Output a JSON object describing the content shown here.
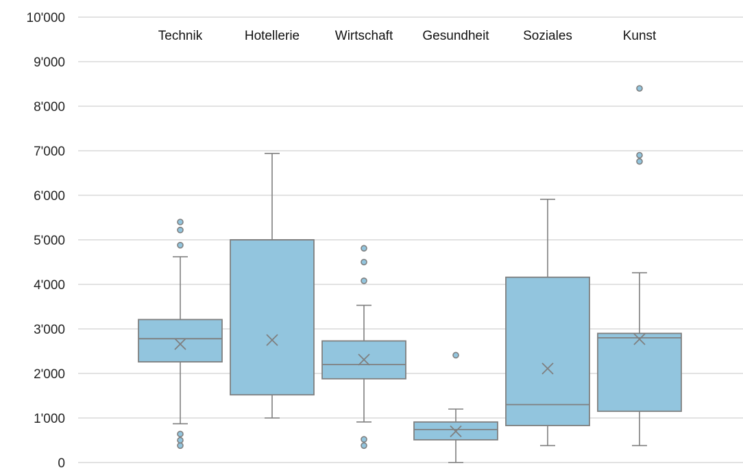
{
  "chart_data": {
    "type": "box",
    "y_ticks": [
      "0",
      "1'000",
      "2'000",
      "3'000",
      "4'000",
      "5'000",
      "6'000",
      "7'000",
      "8'000",
      "9'000",
      "10'000"
    ],
    "ylim": [
      0,
      10000
    ],
    "grid": true,
    "legend": "none",
    "colors": {
      "box_fill": "#92c5de",
      "box_stroke": "#7f7f7f",
      "grid": "#d9d9d9"
    },
    "categories": [
      "Technik",
      "Hotellerie",
      "Wirtschaft",
      "Gesundheit",
      "Soziales",
      "Kunst"
    ],
    "boxes": [
      {
        "category": "Technik",
        "whisker_low": 870,
        "q1": 2260,
        "median": 2780,
        "q3": 3210,
        "whisker_high": 4620,
        "mean": 2660,
        "outliers": [
          380,
          500,
          640,
          4880,
          5220,
          5400
        ]
      },
      {
        "category": "Hotellerie",
        "whisker_low": 1000,
        "q1": 1520,
        "median": 5000,
        "q3": 5000,
        "whisker_high": 6940,
        "mean": 2750,
        "outliers": []
      },
      {
        "category": "Wirtschaft",
        "whisker_low": 910,
        "q1": 1880,
        "median": 2200,
        "q3": 2730,
        "whisker_high": 3530,
        "mean": 2310,
        "outliers": [
          380,
          520,
          4080,
          4500,
          4810
        ]
      },
      {
        "category": "Gesundheit",
        "whisker_low": 0,
        "q1": 510,
        "median": 740,
        "q3": 910,
        "whisker_high": 1200,
        "mean": 700,
        "outliers": [
          2410
        ]
      },
      {
        "category": "Soziales",
        "whisker_low": 380,
        "q1": 830,
        "median": 1300,
        "q3": 4160,
        "whisker_high": 5910,
        "mean": 2110,
        "outliers": []
      },
      {
        "category": "Kunst",
        "whisker_low": 380,
        "q1": 1150,
        "median": 2800,
        "q3": 2900,
        "whisker_high": 4260,
        "mean": 2770,
        "outliers": [
          6760,
          6900,
          8400
        ]
      }
    ]
  }
}
